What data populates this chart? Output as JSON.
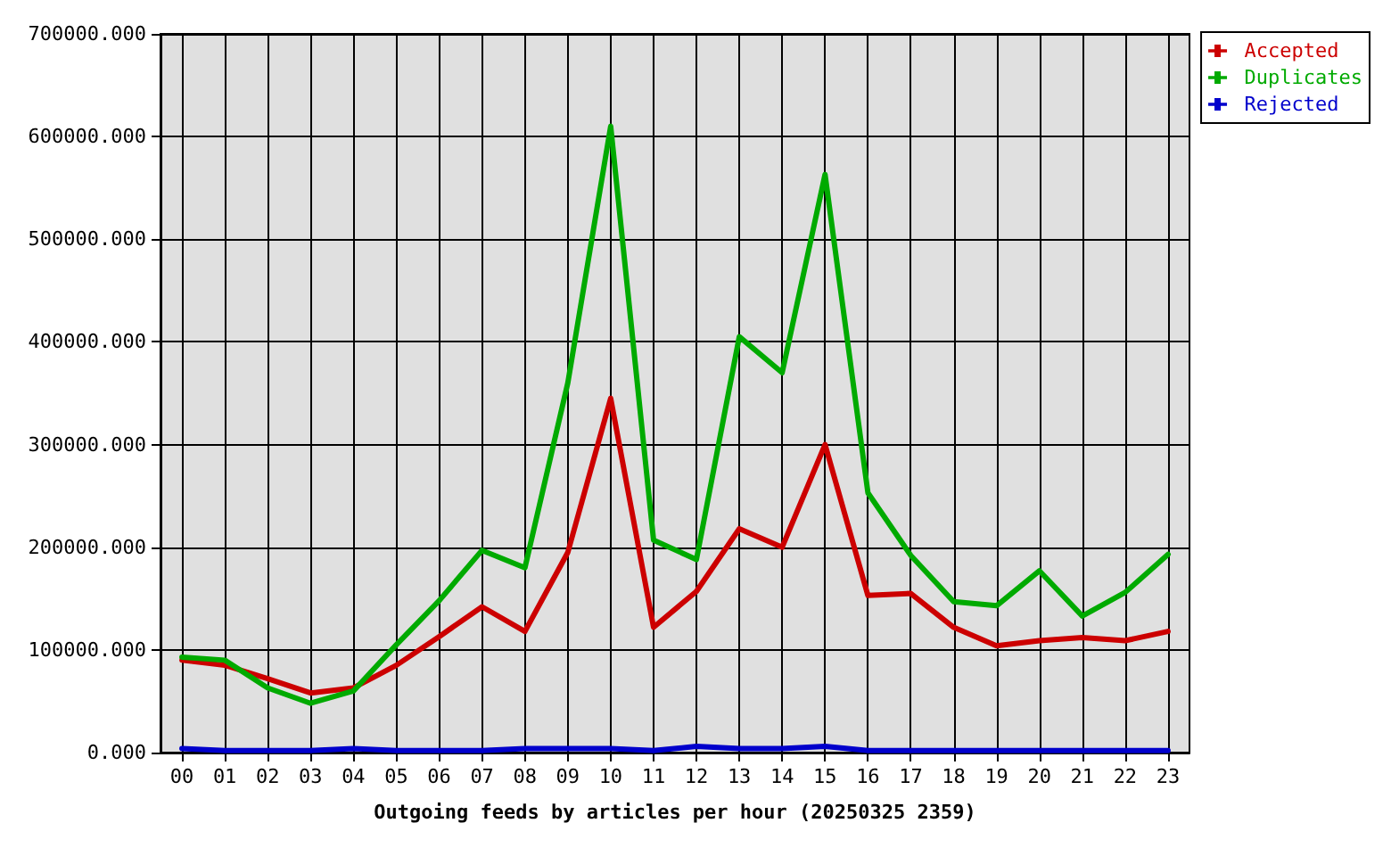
{
  "chart_data": {
    "type": "line",
    "xlabel": "Outgoing feeds by articles per hour (20250325 2359)",
    "categories": [
      "00",
      "01",
      "02",
      "03",
      "04",
      "05",
      "06",
      "07",
      "08",
      "09",
      "10",
      "11",
      "12",
      "13",
      "14",
      "15",
      "16",
      "17",
      "18",
      "19",
      "20",
      "21",
      "22",
      "23"
    ],
    "series": [
      {
        "name": "Accepted",
        "color": "#cc0000",
        "values": [
          90000,
          85000,
          72000,
          58000,
          63000,
          85000,
          113000,
          142000,
          118000,
          195000,
          345000,
          122000,
          157000,
          218000,
          200000,
          300000,
          153000,
          155000,
          122000,
          104000,
          109000,
          112000,
          109000,
          118000
        ]
      },
      {
        "name": "Duplicates",
        "color": "#00aa00",
        "values": [
          93000,
          90000,
          63000,
          48000,
          60000,
          105000,
          148000,
          197000,
          180000,
          360000,
          610000,
          207000,
          188000,
          405000,
          370000,
          563000,
          253000,
          192000,
          147000,
          143000,
          177000,
          133000,
          156000,
          193000
        ]
      },
      {
        "name": "Rejected",
        "color": "#0000cc",
        "values": [
          4000,
          2000,
          2000,
          2000,
          4000,
          2000,
          2000,
          2000,
          4000,
          4000,
          4000,
          2000,
          6000,
          4000,
          4000,
          6000,
          2000,
          2000,
          2000,
          2000,
          2000,
          2000,
          2000,
          2000
        ]
      }
    ],
    "ylim": [
      0,
      700000
    ],
    "yticks": [
      {
        "value": 0,
        "label": "0.000"
      },
      {
        "value": 100000,
        "label": "100000.000"
      },
      {
        "value": 200000,
        "label": "200000.000"
      },
      {
        "value": 300000,
        "label": "300000.000"
      },
      {
        "value": 400000,
        "label": "400000.000"
      },
      {
        "value": 500000,
        "label": "500000.000"
      },
      {
        "value": 600000,
        "label": "600000.000"
      },
      {
        "value": 700000,
        "label": "700000.000"
      }
    ],
    "grid": true,
    "legend": "top right",
    "marker": "none",
    "line_style": "solid"
  }
}
